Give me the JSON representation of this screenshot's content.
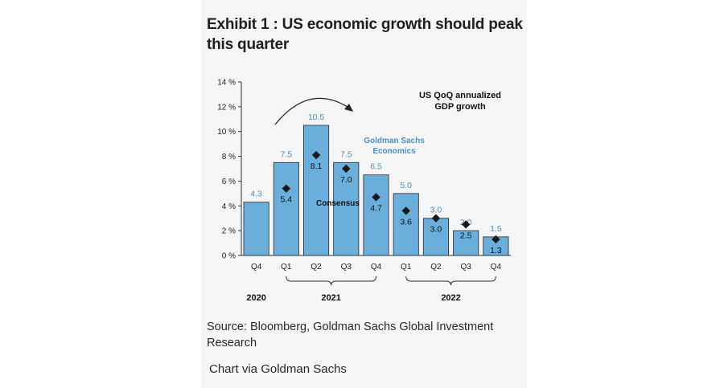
{
  "title": "Exhibit 1 : US economic growth should peak this quarter",
  "source": "Source: Bloomberg, Goldman Sachs Global Investment Research",
  "credit": "Chart via Goldman Sachs",
  "colors": {
    "bar": "#6aaedc",
    "bar_label": "#4a90c8",
    "marker": "#1a1a1a",
    "text": "#1f1f1f"
  },
  "chart_data": {
    "type": "bar",
    "title": "US QoQ annualized GDP growth",
    "categories": [
      "Q4",
      "Q1",
      "Q2",
      "Q3",
      "Q4",
      "Q1",
      "Q2",
      "Q3",
      "Q4"
    ],
    "year_groups": [
      {
        "label": "2020",
        "from": 0,
        "to": 0
      },
      {
        "label": "2021",
        "from": 1,
        "to": 4
      },
      {
        "label": "2022",
        "from": 5,
        "to": 8
      }
    ],
    "series": [
      {
        "name": "Goldman Sachs Economics",
        "type": "bar",
        "values": [
          4.3,
          7.5,
          10.5,
          7.5,
          6.5,
          5.0,
          3.0,
          2.0,
          1.5
        ],
        "labels": [
          "4.3",
          "7.5",
          "10.5",
          "7.5",
          "6.5",
          "5.0",
          "3.0",
          "2.0",
          "1.5"
        ]
      },
      {
        "name": "Consensus",
        "type": "scatter",
        "marker": "diamond",
        "values": [
          null,
          5.4,
          8.1,
          7.0,
          4.7,
          3.6,
          3.0,
          2.5,
          1.3
        ],
        "labels": [
          null,
          "5.4",
          "8.1",
          "7.0",
          "4.7",
          "3.6",
          "3.0",
          "2.5",
          "1.3"
        ]
      }
    ],
    "y_ticks": [
      "0 %",
      "2 %",
      "4 %",
      "6 %",
      "8 %",
      "10 %",
      "12 %",
      "14 %"
    ],
    "ylim": [
      0,
      14
    ],
    "grid": false,
    "legend_labels": {
      "gs": "Goldman Sachs\nEconomics",
      "consensus": "Consensus",
      "chart_label": "US QoQ annualized\nGDP growth"
    }
  }
}
